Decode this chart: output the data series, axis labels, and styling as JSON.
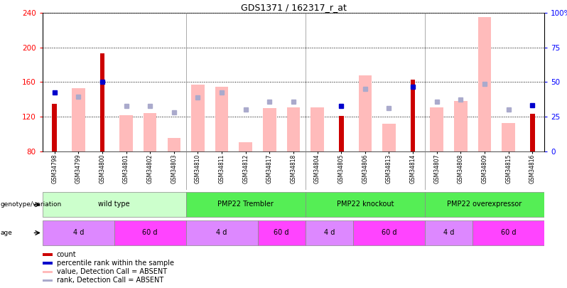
{
  "title": "GDS1371 / 162317_r_at",
  "samples": [
    "GSM34798",
    "GSM34799",
    "GSM34800",
    "GSM34801",
    "GSM34802",
    "GSM34803",
    "GSM34810",
    "GSM34811",
    "GSM34812",
    "GSM34817",
    "GSM34818",
    "GSM34804",
    "GSM34805",
    "GSM34806",
    "GSM34813",
    "GSM34814",
    "GSM34807",
    "GSM34808",
    "GSM34809",
    "GSM34815",
    "GSM34816"
  ],
  "count_values": [
    135,
    null,
    193,
    null,
    null,
    null,
    null,
    null,
    null,
    null,
    null,
    null,
    121,
    null,
    null,
    163,
    null,
    null,
    null,
    null,
    123
  ],
  "rank_values": [
    148,
    null,
    160,
    null,
    null,
    null,
    null,
    null,
    null,
    null,
    null,
    null,
    132,
    null,
    null,
    155,
    null,
    null,
    null,
    null,
    133
  ],
  "pink_bar_values": [
    null,
    153,
    null,
    122,
    124,
    95,
    157,
    155,
    90,
    130,
    131,
    131,
    null,
    168,
    112,
    null,
    131,
    138,
    235,
    113,
    null
  ],
  "blue_dot_values": [
    null,
    143,
    null,
    132,
    132,
    125,
    142,
    148,
    128,
    137,
    137,
    null,
    null,
    152,
    130,
    null,
    137,
    140,
    158,
    128,
    null
  ],
  "ylim_left": [
    80,
    240
  ],
  "ylim_right": [
    0,
    100
  ],
  "y_ticks_left": [
    80,
    120,
    160,
    200,
    240
  ],
  "y_ticks_right": [
    0,
    25,
    50,
    75,
    100
  ],
  "y_tick_labels_right": [
    "0",
    "25",
    "50",
    "75",
    "100%"
  ],
  "bar_color_dark_red": "#cc0000",
  "bar_color_pink": "#ffbbbb",
  "dot_color_dark_blue": "#0000cc",
  "dot_color_light_blue": "#aaaacc",
  "geno_color_light": "#ccffcc",
  "geno_color_dark": "#55ee55",
  "age_color_light": "#dd88ff",
  "age_color_dark": "#ff44ff",
  "legend_items": [
    {
      "label": "count",
      "color": "#cc0000"
    },
    {
      "label": "percentile rank within the sample",
      "color": "#0000cc"
    },
    {
      "label": "value, Detection Call = ABSENT",
      "color": "#ffbbbb"
    },
    {
      "label": "rank, Detection Call = ABSENT",
      "color": "#aaaacc"
    }
  ],
  "bg_color": "#ffffff"
}
